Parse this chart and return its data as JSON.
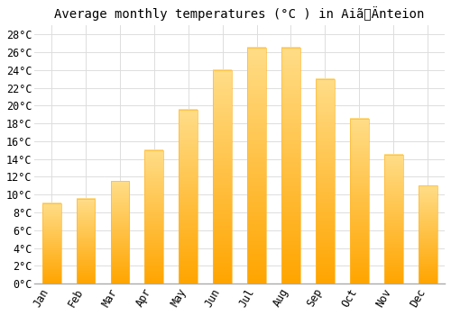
{
  "title": "Average monthly temperatures (°C ) in AiãÄnteion",
  "months": [
    "Jan",
    "Feb",
    "Mar",
    "Apr",
    "May",
    "Jun",
    "Jul",
    "Aug",
    "Sep",
    "Oct",
    "Nov",
    "Dec"
  ],
  "values": [
    9.0,
    9.5,
    11.5,
    15.0,
    19.5,
    24.0,
    26.5,
    26.5,
    23.0,
    18.5,
    14.5,
    11.0
  ],
  "bar_color_bottom": "#FFA500",
  "bar_color_top": "#FFDD88",
  "background_color": "#ffffff",
  "grid_color": "#dddddd",
  "ylim": [
    0,
    29
  ],
  "ytick_step": 2,
  "title_fontsize": 10,
  "tick_fontsize": 8.5,
  "font_family": "monospace",
  "bar_width": 0.55
}
